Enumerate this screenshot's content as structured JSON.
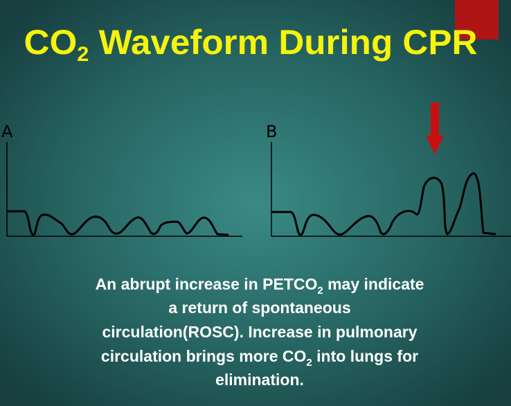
{
  "title": [
    "CO",
    "2",
    " Waveform During CPR"
  ],
  "panels": [
    {
      "label": "A"
    },
    {
      "label": "B"
    }
  ],
  "body": [
    [
      "An abrupt increase in PETCO",
      "2",
      " may indicate"
    ],
    [
      "a return of spontaneous"
    ],
    [
      "circulation(ROSC). Increase in pulmonary"
    ],
    [
      "circulation brings more CO",
      "2",
      "  into lungs for"
    ],
    [
      "elimination."
    ]
  ]
}
